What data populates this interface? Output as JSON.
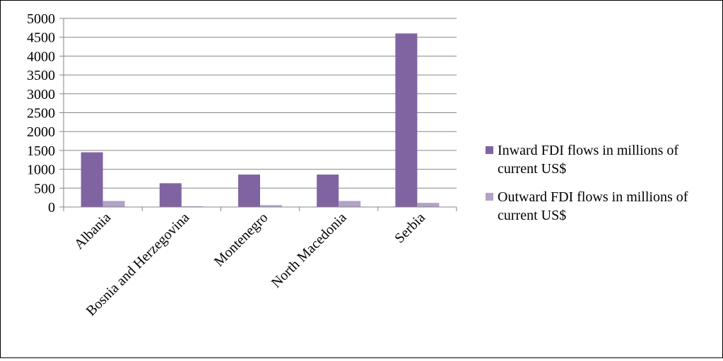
{
  "chart_data": {
    "type": "bar",
    "categories": [
      "Albania",
      "Bosnia and Herzegovina",
      "Montenegro",
      "North Macedonia",
      "Serbia"
    ],
    "series": [
      {
        "name": "Inward FDI flows in millions of current US$",
        "color": "#8064a2",
        "values": [
          1450,
          630,
          860,
          860,
          4600
        ]
      },
      {
        "name": "Outward FDI flows in millions of current US$",
        "color": "#b3a2c7",
        "values": [
          160,
          20,
          50,
          160,
          110
        ]
      }
    ],
    "yticks": [
      "0",
      "500",
      "1000",
      "1500",
      "2000",
      "2500",
      "3000",
      "3500",
      "4000",
      "4500",
      "5000"
    ],
    "ylim": [
      0,
      5000
    ],
    "grid": true,
    "legend_position": "right",
    "title": "",
    "xlabel": "",
    "ylabel": ""
  }
}
